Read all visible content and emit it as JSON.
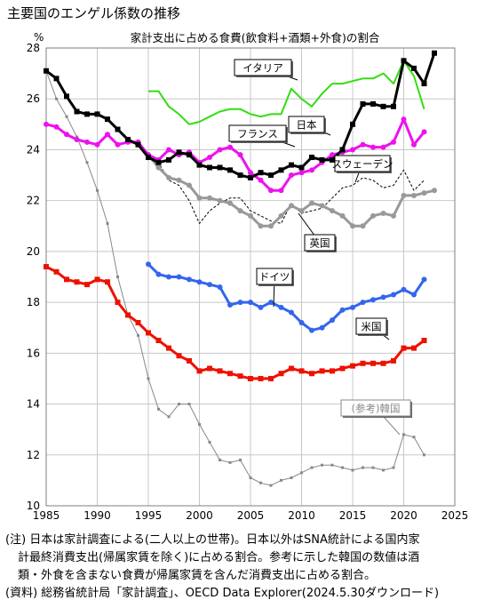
{
  "page_title": "主要国のエンゲル係数の推移",
  "notes": {
    "line1": "(注) 日本は家計調査による(二人以上の世帯)。日本以外はSNA統計による国内家",
    "line2": "計最終消費支出(帰属家賃を除く)に占める割合。参考に示した韓国の数値は酒",
    "line3": "類・外食を含まない食費が帰属家賃を含んだ消費支出に占める割合。",
    "line4": "(資料) 総務省統計局「家計調査」、OECD Data Explorer(2024.5.30ダウンロード)"
  },
  "chart_data": {
    "type": "line",
    "title": "家計支出に占める食費(飲食料+酒類+外食)の割合",
    "ylabel": "%",
    "xlim": [
      1985,
      2025
    ],
    "ylim": [
      10,
      28
    ],
    "xticks": [
      1985,
      1990,
      1995,
      2000,
      2005,
      2010,
      2015,
      2020,
      2025
    ],
    "yticks": [
      10,
      12,
      14,
      16,
      18,
      20,
      22,
      24,
      26,
      28
    ],
    "grid": true,
    "series": [
      {
        "name": "日本",
        "color": "#000000",
        "style": "thick-square",
        "x": [
          1985,
          1986,
          1987,
          1988,
          1989,
          1990,
          1991,
          1992,
          1993,
          1994,
          1995,
          1996,
          1997,
          1998,
          1999,
          2000,
          2001,
          2002,
          2003,
          2004,
          2005,
          2006,
          2007,
          2008,
          2009,
          2010,
          2011,
          2012,
          2013,
          2014,
          2015,
          2016,
          2017,
          2018,
          2019,
          2020,
          2021,
          2022,
          2023
        ],
        "y": [
          27.1,
          26.8,
          26.1,
          25.5,
          25.4,
          25.4,
          25.2,
          24.8,
          24.4,
          24.2,
          23.7,
          23.5,
          23.6,
          23.9,
          23.8,
          23.4,
          23.3,
          23.3,
          23.2,
          23.0,
          22.9,
          23.1,
          23.0,
          23.2,
          23.4,
          23.3,
          23.7,
          23.6,
          23.6,
          24.0,
          25.0,
          25.8,
          25.8,
          25.7,
          25.7,
          27.5,
          27.2,
          26.6,
          27.8
        ]
      },
      {
        "name": "イタリア",
        "color": "#33dd11",
        "style": "line",
        "x": [
          1995,
          1996,
          1997,
          1998,
          1999,
          2000,
          2001,
          2002,
          2003,
          2004,
          2005,
          2006,
          2007,
          2008,
          2009,
          2010,
          2011,
          2012,
          2013,
          2014,
          2015,
          2016,
          2017,
          2018,
          2019,
          2020,
          2021,
          2022
        ],
        "y": [
          26.3,
          26.3,
          25.7,
          25.4,
          25.0,
          25.1,
          25.3,
          25.5,
          25.6,
          25.6,
          25.4,
          25.3,
          25.4,
          25.4,
          26.4,
          26.0,
          25.7,
          26.2,
          26.6,
          26.6,
          26.7,
          26.8,
          26.8,
          27.0,
          26.6,
          27.5,
          26.9,
          25.6
        ]
      },
      {
        "name": "フランス",
        "color": "#ee11ee",
        "style": "thick-dot",
        "x": [
          1985,
          1986,
          1987,
          1988,
          1989,
          1990,
          1991,
          1992,
          1993,
          1994,
          1995,
          1996,
          1997,
          1998,
          1999,
          2000,
          2001,
          2002,
          2003,
          2004,
          2005,
          2006,
          2007,
          2008,
          2009,
          2010,
          2011,
          2012,
          2013,
          2014,
          2015,
          2016,
          2017,
          2018,
          2019,
          2020,
          2021,
          2022
        ],
        "y": [
          25.0,
          24.9,
          24.6,
          24.4,
          24.3,
          24.2,
          24.6,
          24.2,
          24.3,
          24.3,
          23.8,
          23.6,
          24.0,
          23.8,
          23.9,
          23.5,
          23.7,
          24.0,
          24.1,
          23.8,
          23.1,
          22.8,
          22.4,
          22.4,
          23.0,
          23.1,
          23.2,
          23.5,
          23.8,
          23.9,
          24.0,
          24.2,
          24.1,
          24.1,
          24.3,
          25.2,
          24.2,
          24.7
        ]
      },
      {
        "name": "スウェーデン",
        "color": "#000000",
        "style": "dashed",
        "x": [
          1995,
          1996,
          1997,
          1998,
          1999,
          2000,
          2001,
          2002,
          2003,
          2004,
          2005,
          2006,
          2007,
          2008,
          2009,
          2010,
          2011,
          2012,
          2013,
          2014,
          2015,
          2016,
          2017,
          2018,
          2019,
          2020,
          2021,
          2022
        ],
        "y": [
          23.9,
          23.5,
          22.8,
          22.6,
          22.0,
          21.1,
          21.6,
          21.9,
          22.1,
          22.1,
          21.6,
          21.4,
          21.2,
          21.1,
          21.9,
          21.5,
          21.6,
          21.7,
          22.1,
          22.5,
          22.6,
          22.9,
          22.8,
          22.5,
          22.6,
          23.2,
          22.4,
          22.8
        ]
      },
      {
        "name": "英国",
        "color": "#999999",
        "style": "thick-dot",
        "x": [
          1995,
          1996,
          1997,
          1998,
          1999,
          2000,
          2001,
          2002,
          2003,
          2004,
          2005,
          2006,
          2007,
          2008,
          2009,
          2010,
          2011,
          2012,
          2013,
          2014,
          2015,
          2016,
          2017,
          2018,
          2019,
          2020,
          2021,
          2022,
          2023
        ],
        "y": [
          23.8,
          23.3,
          22.9,
          22.8,
          22.6,
          22.1,
          22.1,
          22.0,
          21.9,
          21.6,
          21.4,
          21.0,
          21.0,
          21.4,
          21.8,
          21.6,
          21.9,
          21.8,
          21.6,
          21.4,
          21.0,
          21.0,
          21.4,
          21.5,
          21.4,
          22.2,
          22.2,
          22.3,
          22.4
        ]
      },
      {
        "name": "ドイツ",
        "color": "#3366ee",
        "style": "thick-dot",
        "x": [
          1995,
          1996,
          1997,
          1998,
          1999,
          2000,
          2001,
          2002,
          2003,
          2004,
          2005,
          2006,
          2007,
          2008,
          2009,
          2010,
          2011,
          2012,
          2013,
          2014,
          2015,
          2016,
          2017,
          2018,
          2019,
          2020,
          2021,
          2022
        ],
        "y": [
          19.5,
          19.1,
          19.0,
          19.0,
          18.9,
          18.8,
          18.7,
          18.6,
          17.9,
          18.0,
          18.0,
          17.8,
          18.0,
          17.8,
          17.6,
          17.2,
          16.9,
          17.0,
          17.3,
          17.7,
          17.8,
          18.0,
          18.1,
          18.2,
          18.3,
          18.5,
          18.3,
          18.9
        ]
      },
      {
        "name": "米国",
        "color": "#ee1100",
        "style": "thick-square",
        "x": [
          1985,
          1986,
          1987,
          1988,
          1989,
          1990,
          1991,
          1992,
          1993,
          1994,
          1995,
          1996,
          1997,
          1998,
          1999,
          2000,
          2001,
          2002,
          2003,
          2004,
          2005,
          2006,
          2007,
          2008,
          2009,
          2010,
          2011,
          2012,
          2013,
          2014,
          2015,
          2016,
          2017,
          2018,
          2019,
          2020,
          2021,
          2022
        ],
        "y": [
          19.4,
          19.2,
          18.9,
          18.8,
          18.7,
          18.9,
          18.8,
          18.0,
          17.5,
          17.2,
          16.8,
          16.5,
          16.2,
          15.9,
          15.7,
          15.3,
          15.4,
          15.3,
          15.2,
          15.1,
          15.0,
          15.0,
          15.0,
          15.2,
          15.4,
          15.3,
          15.2,
          15.3,
          15.3,
          15.4,
          15.5,
          15.6,
          15.6,
          15.6,
          15.7,
          16.2,
          16.2,
          16.5
        ]
      },
      {
        "name": "(参考)韓国",
        "color": "#888888",
        "style": "thin-marker",
        "x": [
          1985,
          1986,
          1987,
          1988,
          1989,
          1990,
          1991,
          1992,
          1993,
          1994,
          1995,
          1996,
          1997,
          1998,
          1999,
          2000,
          2001,
          2002,
          2003,
          2004,
          2005,
          2006,
          2007,
          2008,
          2009,
          2010,
          2011,
          2012,
          2013,
          2014,
          2015,
          2016,
          2017,
          2018,
          2019,
          2020,
          2021,
          2022
        ],
        "y": [
          27.1,
          26.0,
          25.3,
          24.5,
          23.5,
          22.4,
          21.1,
          19.0,
          17.5,
          16.7,
          15.0,
          13.8,
          13.5,
          14.0,
          14.0,
          13.2,
          12.5,
          11.8,
          11.7,
          11.8,
          11.1,
          10.9,
          10.8,
          11.0,
          11.1,
          11.3,
          11.5,
          11.6,
          11.6,
          11.5,
          11.4,
          11.5,
          11.5,
          11.4,
          11.5,
          12.8,
          12.7,
          12.0
        ]
      }
    ],
    "labels": {
      "japan": "日本",
      "italy": "イタリア",
      "france": "フランス",
      "sweden": "スウェーデン",
      "uk": "英国",
      "germany": "ドイツ",
      "usa": "米国",
      "korea": "(参考)韓国"
    }
  }
}
